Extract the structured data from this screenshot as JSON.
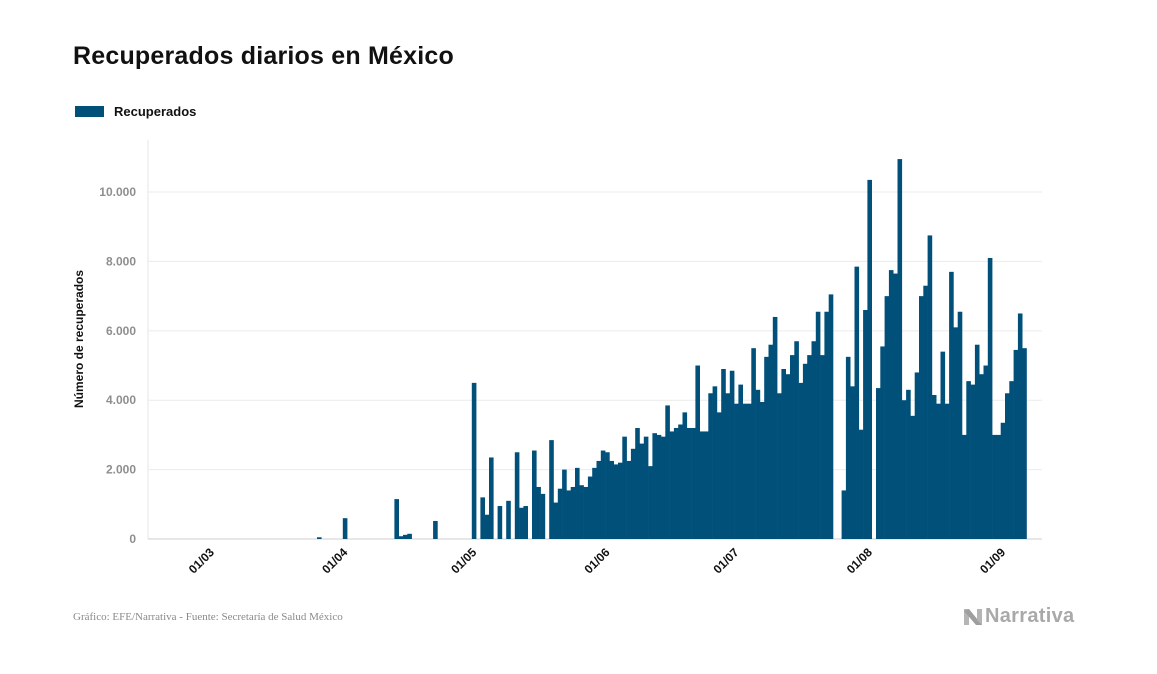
{
  "chart_data": {
    "type": "bar",
    "title": "Recuperados diarios en México",
    "ylabel": "Número de recuperados",
    "ylim": [
      0,
      11500
    ],
    "yticks": [
      {
        "value": 0,
        "label": "0"
      },
      {
        "value": 2000,
        "label": "2.000"
      },
      {
        "value": 4000,
        "label": "4.000"
      },
      {
        "value": 6000,
        "label": "6.000"
      },
      {
        "value": 8000,
        "label": "8.000"
      },
      {
        "value": 10000,
        "label": "10.000"
      }
    ],
    "xticks": [
      {
        "index": 3,
        "label": "01/03"
      },
      {
        "index": 34,
        "label": "01/04"
      },
      {
        "index": 64,
        "label": "01/05"
      },
      {
        "index": 95,
        "label": "01/06"
      },
      {
        "index": 125,
        "label": "01/07"
      },
      {
        "index": 156,
        "label": "01/08"
      },
      {
        "index": 187,
        "label": "01/09"
      }
    ],
    "grid": true,
    "legend_position": "top-left",
    "series": [
      {
        "name": "Recuperados",
        "color": "#01507a",
        "values": [
          0,
          0,
          0,
          0,
          0,
          0,
          0,
          0,
          0,
          0,
          0,
          0,
          0,
          0,
          0,
          0,
          0,
          0,
          0,
          0,
          0,
          0,
          0,
          0,
          0,
          0,
          0,
          0,
          0,
          0,
          0,
          50,
          0,
          0,
          0,
          0,
          0,
          600,
          0,
          0,
          0,
          0,
          0,
          0,
          0,
          0,
          0,
          0,
          0,
          1150,
          80,
          120,
          150,
          0,
          0,
          0,
          0,
          0,
          520,
          0,
          0,
          0,
          0,
          0,
          0,
          0,
          0,
          4500,
          0,
          1200,
          700,
          2350,
          0,
          950,
          0,
          1100,
          0,
          2500,
          900,
          950,
          0,
          2550,
          1500,
          1300,
          0,
          2850,
          1050,
          1450,
          2000,
          1400,
          1500,
          2050,
          1550,
          1500,
          1800,
          2050,
          2250,
          2550,
          2500,
          2250,
          2150,
          2200,
          2950,
          2250,
          2600,
          3200,
          2750,
          2950,
          2100,
          3050,
          3000,
          2950,
          3850,
          3100,
          3200,
          3300,
          3650,
          3200,
          3200,
          5000,
          3100,
          3100,
          4200,
          4400,
          3650,
          4900,
          4200,
          4850,
          3900,
          4450,
          3900,
          3900,
          5500,
          4300,
          3950,
          5250,
          5600,
          6400,
          4200,
          4900,
          4750,
          5300,
          5700,
          4500,
          5050,
          5300,
          5700,
          6550,
          5300,
          6550,
          7050,
          0,
          0,
          1400,
          5250,
          4400,
          7850,
          3150,
          6600,
          10350,
          0,
          4350,
          5550,
          7000,
          7750,
          7650,
          10950,
          4000,
          4300,
          3550,
          4800,
          7000,
          7300,
          8750,
          4150,
          3900,
          5400,
          3900,
          7700,
          6100,
          6550,
          3000,
          4550,
          4450,
          5600,
          4750,
          5000,
          8100,
          3000,
          3000,
          3350,
          4200,
          4550,
          5450,
          6500,
          5500
        ]
      }
    ]
  },
  "footer": {
    "source": "Gráfico: EFE/Narrativa - Fuente: Secretaría de Salud México"
  },
  "brand": {
    "name": "Narrativa",
    "logo_icon": "narrativa-n-icon"
  }
}
